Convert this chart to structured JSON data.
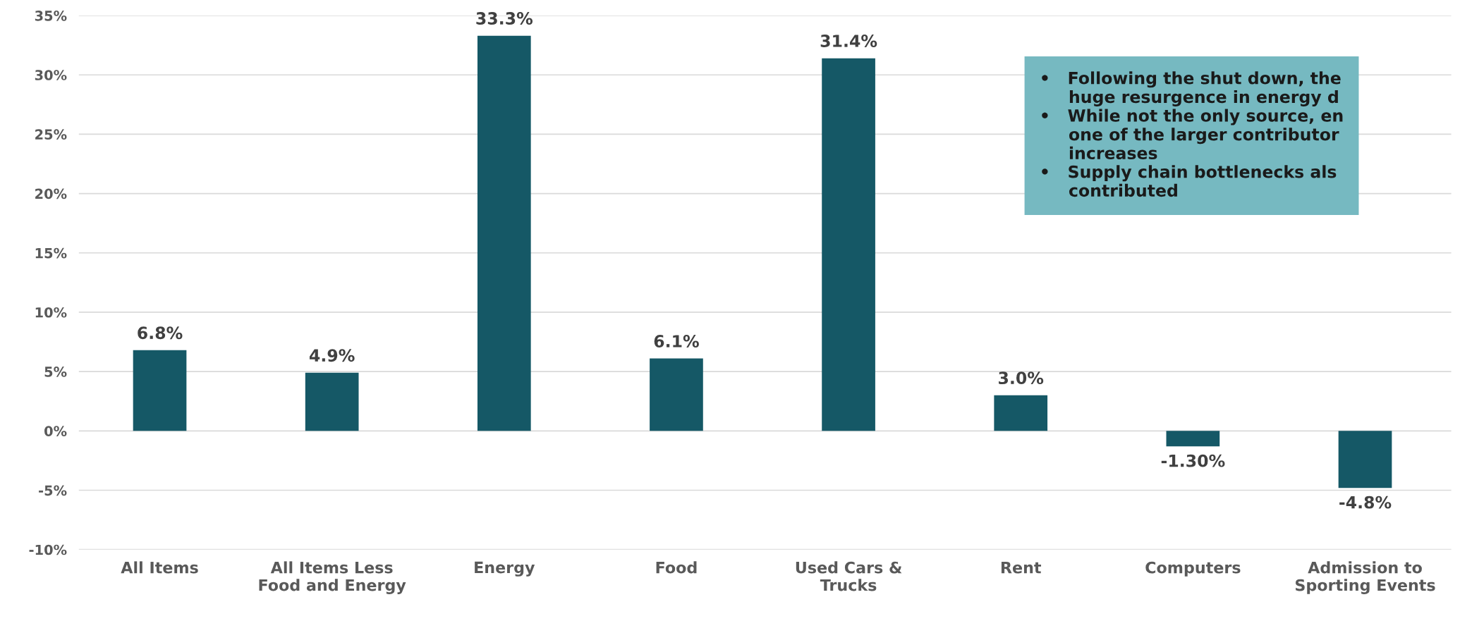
{
  "chart_data": {
    "type": "bar",
    "categories": [
      "All Items",
      "All Items Less\nFood and Energy",
      "Energy",
      "Food",
      "Used Cars &\nTrucks",
      "Rent",
      "Computers",
      "Admission to\nSporting Events"
    ],
    "values": [
      6.8,
      4.9,
      33.3,
      6.1,
      31.4,
      3.0,
      -1.3,
      -4.8
    ],
    "value_labels": [
      "6.8%",
      "4.9%",
      "33.3%",
      "6.1%",
      "31.4%",
      "3.0%",
      "-1.30%",
      "-4.8%"
    ],
    "color": "#155866",
    "ylim": [
      -10,
      35
    ],
    "yticks": [
      {
        "value": -10,
        "label": "-10%"
      },
      {
        "value": -5,
        "label": "-5%"
      },
      {
        "value": 0,
        "label": "0%"
      },
      {
        "value": 5,
        "label": "5%"
      },
      {
        "value": 10,
        "label": "10%"
      },
      {
        "value": 15,
        "label": "15%"
      },
      {
        "value": 20,
        "label": "20%"
      },
      {
        "value": 25,
        "label": "25%"
      },
      {
        "value": 30,
        "label": "30%"
      },
      {
        "value": 35,
        "label": "35%"
      }
    ],
    "grid": "y",
    "annotations": [
      "•   Following the shut down, the\n     huge resurgence in energy d",
      "•   While not the only source, en\n     one of the larger contributor\n     increases",
      "•   Supply chain bottlenecks als\n     contributed"
    ]
  }
}
